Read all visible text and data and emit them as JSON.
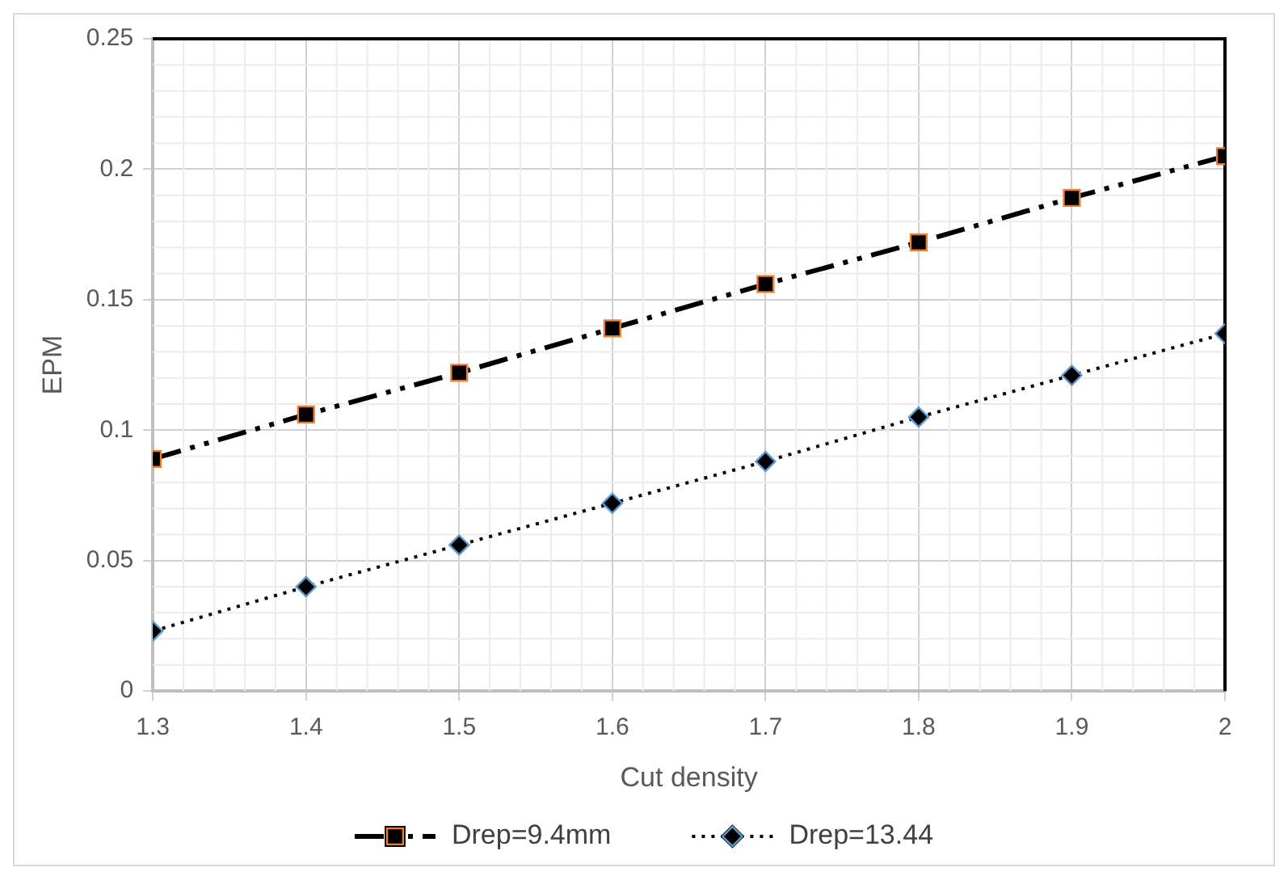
{
  "chart_data": {
    "type": "line",
    "xlabel": "Cut density",
    "ylabel": "EPM",
    "x": [
      1.3,
      1.4,
      1.5,
      1.6,
      1.7,
      1.8,
      1.9,
      2
    ],
    "series": [
      {
        "name": "Drep=9.4mm",
        "color": "#000000",
        "marker": "square",
        "line_style": "dashed",
        "values": [
          0.089,
          0.106,
          0.122,
          0.139,
          0.156,
          0.172,
          0.189,
          0.205
        ]
      },
      {
        "name": "Drep=13.44",
        "color": "#000000",
        "marker": "diamond",
        "line_style": "dotted",
        "values": [
          0.023,
          0.04,
          0.056,
          0.072,
          0.088,
          0.105,
          0.121,
          0.137
        ]
      }
    ],
    "xlim": [
      1.3,
      2
    ],
    "xticks": [
      1.3,
      1.4,
      1.5,
      1.6,
      1.7,
      1.8,
      1.9,
      2
    ],
    "ylim": [
      0,
      0.25
    ],
    "yticks": [
      0,
      0.05,
      0.1,
      0.15,
      0.2,
      0.25
    ],
    "grid": true,
    "legend": "bottom"
  }
}
